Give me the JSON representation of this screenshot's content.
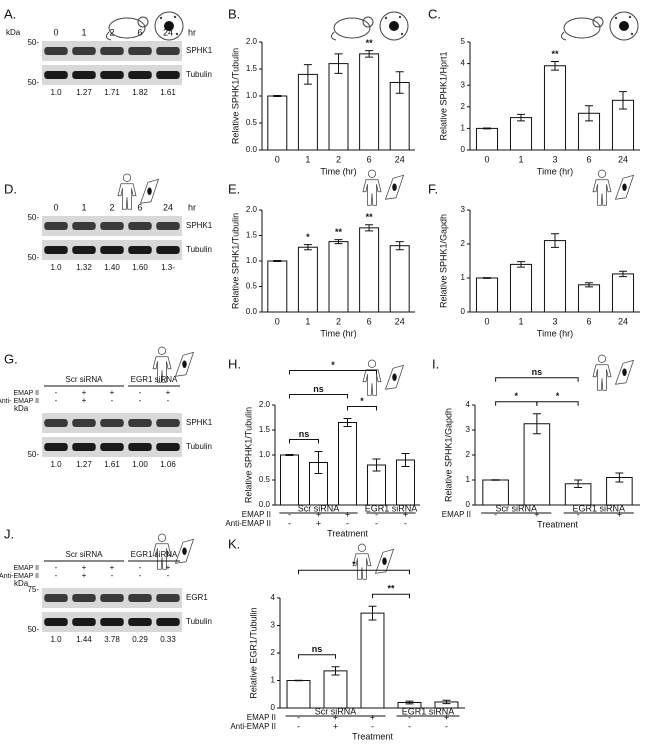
{
  "chart_data": [
    {
      "type": "bar",
      "panel": "B.",
      "ylabel": "Relative SPHK1/Tubulin",
      "xlabel": "Time (hr)",
      "categories": [
        "0",
        "1",
        "2",
        "6",
        "24"
      ],
      "values": [
        1.0,
        1.4,
        1.6,
        1.78,
        1.25
      ],
      "errors": [
        0.01,
        0.18,
        0.18,
        0.06,
        0.2
      ],
      "stars": [
        null,
        null,
        null,
        "**",
        null
      ],
      "ylim": [
        0,
        2
      ],
      "yticks": [
        {
          "value": 0,
          "label": "0.0"
        },
        0.5,
        {
          "value": 1,
          "label": "1.0"
        },
        1.5,
        {
          "value": 2,
          "label": "2.0"
        }
      ],
      "color": "#ffffff"
    },
    {
      "type": "bar",
      "panel": "C.",
      "ylabel": "Relative SPHK1/Hprt1",
      "xlabel": "Time (hr)",
      "categories": [
        "0",
        "1",
        "3",
        "6",
        "24"
      ],
      "values": [
        1.0,
        1.5,
        3.9,
        1.7,
        2.3
      ],
      "errors": [
        0.02,
        0.15,
        0.2,
        0.35,
        0.4
      ],
      "stars": [
        null,
        null,
        "**",
        null,
        null
      ],
      "ylim": [
        0,
        5
      ],
      "yticks": [
        0,
        1,
        2,
        3,
        4,
        5
      ],
      "color": "#ffffff"
    },
    {
      "type": "bar",
      "panel": "E.",
      "ylabel": "Relative SPHK1/Tubulin",
      "xlabel": "Time (hr)",
      "categories": [
        "0",
        "1",
        "2",
        "6",
        "24"
      ],
      "values": [
        1.0,
        1.27,
        1.38,
        1.65,
        1.3
      ],
      "errors": [
        0.01,
        0.05,
        0.04,
        0.06,
        0.08
      ],
      "stars": [
        null,
        "*",
        "**",
        "**",
        null
      ],
      "ylim": [
        0,
        2
      ],
      "yticks": [
        {
          "value": 0,
          "label": "0.0"
        },
        0.5,
        {
          "value": 1,
          "label": "1.0"
        },
        1.5,
        {
          "value": 2,
          "label": "2.0"
        }
      ],
      "color": "#ffffff"
    },
    {
      "type": "bar",
      "panel": "F.",
      "ylabel": "Relative SPHK1/Gapdh",
      "xlabel": "Time (hr)",
      "categories": [
        "0",
        "1",
        "3",
        "6",
        "24"
      ],
      "values": [
        1.0,
        1.4,
        2.1,
        0.8,
        1.12
      ],
      "errors": [
        0.01,
        0.08,
        0.2,
        0.06,
        0.08
      ],
      "stars": [
        null,
        null,
        null,
        null,
        null
      ],
      "ylim": [
        0,
        3
      ],
      "yticks": [
        0,
        1,
        2,
        3
      ],
      "color": "#ffffff"
    },
    {
      "type": "bar",
      "panel": "H.",
      "ylabel": "Relative SPHK1/Tubulin",
      "xlabel": "Treatment",
      "categories": [
        null,
        null,
        null,
        null,
        null
      ],
      "values": [
        1.0,
        0.85,
        1.65,
        0.8,
        0.9
      ],
      "errors": [
        0.01,
        0.22,
        0.08,
        0.12,
        0.13
      ],
      "ylim": [
        0,
        2
      ],
      "yticks": [
        {
          "value": 0,
          "label": "0.0"
        },
        0.5,
        {
          "value": 1,
          "label": "1.0"
        },
        1.5,
        {
          "value": 2,
          "label": "2.0"
        }
      ],
      "color": "#ffffff",
      "groups": [
        {
          "label": "Scr siRNA",
          "from": 0,
          "to": 2
        },
        {
          "label": "EGR1 siRNA",
          "from": 3,
          "to": 4
        }
      ],
      "rows": [
        {
          "label": "EMAP II",
          "signs": [
            "-",
            "+",
            "+",
            "-",
            "+"
          ]
        },
        {
          "label": "Anti-EMAP II",
          "signs": [
            "-",
            "+",
            "-",
            "-",
            "-"
          ]
        }
      ],
      "brackets": [
        {
          "text": "*",
          "from": 0,
          "to": 3
        },
        {
          "text": "ns",
          "from": 0,
          "to": 2
        },
        {
          "text": "*",
          "from": 2,
          "to": 3
        },
        {
          "text": "ns",
          "from": 0,
          "to": 1
        }
      ]
    },
    {
      "type": "bar",
      "panel": "I.",
      "ylabel": "Relative SPHK1/Gapdh",
      "xlabel": "Treatment",
      "categories": [
        null,
        null,
        null,
        null
      ],
      "values": [
        1.0,
        3.25,
        0.85,
        1.1
      ],
      "errors": [
        0.01,
        0.4,
        0.15,
        0.18
      ],
      "ylim": [
        0,
        4
      ],
      "yticks": [
        0,
        1,
        2,
        3,
        4
      ],
      "color": "#ffffff",
      "groups": [
        {
          "label": "Scr siRNA",
          "from": 0,
          "to": 1
        },
        {
          "label": "EGR1 siRNA",
          "from": 2,
          "to": 3
        }
      ],
      "rows": [
        {
          "label": "EMAP II",
          "signs": [
            "-",
            "+",
            "-",
            "+"
          ]
        }
      ],
      "brackets": [
        {
          "text": "ns",
          "from": 0,
          "to": 2
        },
        {
          "text": "*",
          "from": 0,
          "to": 1
        },
        {
          "text": "*",
          "from": 1,
          "to": 2
        }
      ]
    },
    {
      "type": "bar",
      "panel": "K.",
      "ylabel": "Relative EGR1/Tubulin",
      "xlabel": "Treatment",
      "categories": [
        null,
        null,
        null,
        null,
        null
      ],
      "values": [
        1.0,
        1.35,
        3.45,
        0.2,
        0.22
      ],
      "errors": [
        0.01,
        0.15,
        0.25,
        0.05,
        0.06
      ],
      "ylim": [
        0,
        4
      ],
      "yticks": [
        0,
        1,
        2,
        3,
        4
      ],
      "color": "#ffffff",
      "groups": [
        {
          "label": "Scr siRNA",
          "from": 0,
          "to": 2
        },
        {
          "label": "EGR1 siRNA",
          "from": 3,
          "to": 4
        }
      ],
      "rows": [
        {
          "label": "EMAP II",
          "signs": [
            "-",
            "+",
            "+",
            "-",
            "+"
          ]
        },
        {
          "label": "Anti-EMAP II",
          "signs": [
            "-",
            "+",
            "-",
            "-",
            "-"
          ]
        }
      ],
      "brackets": [
        {
          "text": "*",
          "from": 0,
          "to": 3
        },
        {
          "text": "**",
          "from": 2,
          "to": 3
        },
        {
          "text": "ns",
          "from": 0,
          "to": 1
        }
      ]
    }
  ],
  "blots": [
    {
      "panel": "A.",
      "kda": "kDa",
      "lanes": [
        "0",
        "1",
        "2",
        "6",
        "24"
      ],
      "unit": "hr",
      "markers": [
        "50-",
        "50-"
      ],
      "bands": [
        "SPHK1",
        "Tubulin"
      ],
      "ratios": [
        "1.0",
        "1.27",
        "1.71",
        "1.82",
        "1.61"
      ]
    },
    {
      "panel": "D.",
      "lanes": [
        "0",
        "1",
        "2",
        "6",
        "24"
      ],
      "unit": "hr",
      "markers": [
        "50-",
        "50-"
      ],
      "bands": [
        "SPHK1",
        "Tubulin"
      ],
      "ratios": [
        "1.0",
        "1.32",
        "1.40",
        "1.60",
        "1.3-"
      ]
    },
    {
      "panel": "G.",
      "kda": "kDa",
      "groups": [
        {
          "label": "Scr siRNA",
          "from": 0,
          "to": 2
        },
        {
          "label": "EGR1 siRNA",
          "from": 3,
          "to": 4
        }
      ],
      "rows": [
        {
          "label": "EMAP II",
          "signs": [
            "-",
            "+",
            "+",
            "-",
            "+"
          ]
        },
        {
          "label": "Anti- EMAP II",
          "signs": [
            "-",
            "+",
            "-",
            "-",
            "-"
          ]
        }
      ],
      "markers": [
        "50-"
      ],
      "bands": [
        "SPHK1",
        "Tubulin"
      ],
      "ratios": [
        "1.0",
        "1.27",
        "1.61",
        "1.00",
        "1.06"
      ]
    },
    {
      "panel": "J.",
      "kda": "kDa",
      "groups": [
        {
          "label": "Scr  siRNA",
          "from": 0,
          "to": 2
        },
        {
          "label": "EGR1 siRNA",
          "from": 3,
          "to": 4
        }
      ],
      "rows": [
        {
          "label": "EMAP II",
          "signs": [
            "-",
            "+",
            "+",
            "-",
            "+"
          ]
        },
        {
          "label": "Anti-EMAP II",
          "signs": [
            "-",
            "+",
            "-",
            "-",
            "-"
          ]
        }
      ],
      "markers": [
        "75-",
        "50-"
      ],
      "bands": [
        "EGR1",
        "Tubulin"
      ],
      "ratios": [
        "1.0",
        "1.44",
        "3.78",
        "0.29",
        "0.33"
      ]
    }
  ]
}
